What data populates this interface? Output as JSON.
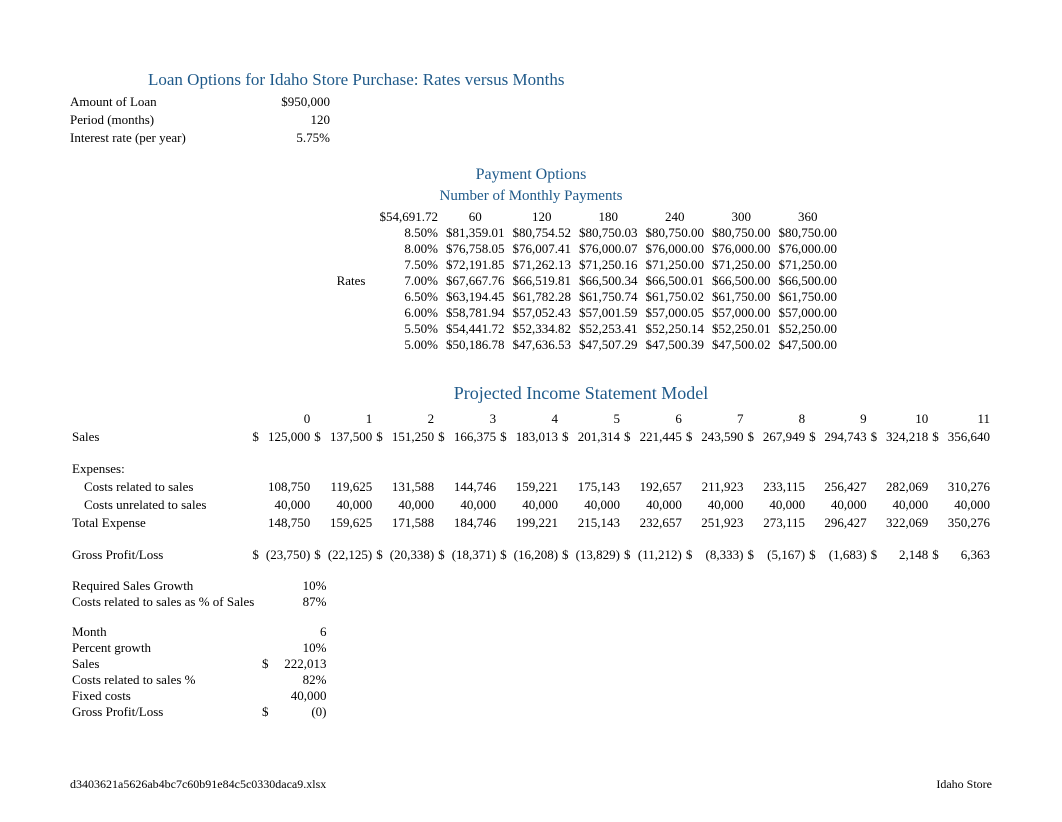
{
  "title": "Loan Options for Idaho Store Purchase: Rates versus Months",
  "loan_info": {
    "amount_label": "Amount of Loan",
    "amount_value": "$950,000",
    "period_label": "Period (months)",
    "period_value": "120",
    "rate_label": "Interest rate (per year)",
    "rate_value": "5.75%"
  },
  "payment_options_title": "Payment Options",
  "payment_subtitle": "Number of Monthly Payments",
  "rates_label": "Rates",
  "loan_table": {
    "corner": "$54,691.72",
    "months": [
      "60",
      "120",
      "180",
      "240",
      "300",
      "360"
    ],
    "rows": [
      {
        "rate": "8.50%",
        "vals": [
          "$81,359.01",
          "$80,754.52",
          "$80,750.03",
          "$80,750.00",
          "$80,750.00",
          "$80,750.00"
        ]
      },
      {
        "rate": "8.00%",
        "vals": [
          "$76,758.05",
          "$76,007.41",
          "$76,000.07",
          "$76,000.00",
          "$76,000.00",
          "$76,000.00"
        ]
      },
      {
        "rate": "7.50%",
        "vals": [
          "$72,191.85",
          "$71,262.13",
          "$71,250.16",
          "$71,250.00",
          "$71,250.00",
          "$71,250.00"
        ]
      },
      {
        "rate": "7.00%",
        "vals": [
          "$67,667.76",
          "$66,519.81",
          "$66,500.34",
          "$66,500.01",
          "$66,500.00",
          "$66,500.00"
        ]
      },
      {
        "rate": "6.50%",
        "vals": [
          "$63,194.45",
          "$61,782.28",
          "$61,750.74",
          "$61,750.02",
          "$61,750.00",
          "$61,750.00"
        ]
      },
      {
        "rate": "6.00%",
        "vals": [
          "$58,781.94",
          "$57,052.43",
          "$57,001.59",
          "$57,000.05",
          "$57,000.00",
          "$57,000.00"
        ]
      },
      {
        "rate": "5.50%",
        "vals": [
          "$54,441.72",
          "$52,334.82",
          "$52,253.41",
          "$52,250.14",
          "$52,250.01",
          "$52,250.00"
        ]
      },
      {
        "rate": "5.00%",
        "vals": [
          "$50,186.78",
          "$47,636.53",
          "$47,507.29",
          "$47,500.39",
          "$47,500.02",
          "$47,500.00"
        ]
      }
    ]
  },
  "income_title": "Projected Income Statement Model",
  "income": {
    "periods": [
      "0",
      "1",
      "2",
      "3",
      "4",
      "5",
      "6",
      "7",
      "8",
      "9",
      "10",
      "11"
    ],
    "sales_label": "Sales",
    "sales": [
      "125,000",
      "137,500",
      "151,250",
      "166,375",
      "183,013",
      "201,314",
      "221,445",
      "243,590",
      "267,949",
      "294,743",
      "324,218",
      "356,640"
    ],
    "expenses_label": "Expenses:",
    "costs_related_label": "Costs related to sales",
    "costs_related": [
      "108,750",
      "119,625",
      "131,588",
      "144,746",
      "159,221",
      "175,143",
      "192,657",
      "211,923",
      "233,115",
      "256,427",
      "282,069",
      "310,276"
    ],
    "costs_unrelated_label": "Costs unrelated to sales",
    "costs_unrelated": [
      "40,000",
      "40,000",
      "40,000",
      "40,000",
      "40,000",
      "40,000",
      "40,000",
      "40,000",
      "40,000",
      "40,000",
      "40,000",
      "40,000"
    ],
    "total_expense_label": "Total Expense",
    "total_expense": [
      "148,750",
      "159,625",
      "171,588",
      "184,746",
      "199,221",
      "215,143",
      "232,657",
      "251,923",
      "273,115",
      "296,427",
      "322,069",
      "350,276"
    ],
    "gross_profit_label": "Gross Profit/Loss",
    "gross_profit": [
      "(23,750)",
      "(22,125)",
      "(20,338)",
      "(18,371)",
      "(16,208)",
      "(13,829)",
      "(11,212)",
      "(8,333)",
      "(5,167)",
      "(1,683)",
      "2,148",
      "6,363"
    ]
  },
  "summary": {
    "required_growth_label": "Required Sales Growth",
    "required_growth": "10%",
    "costs_pct_label": "Costs related to sales as % of Sales",
    "costs_pct": "87%",
    "month_label": "Month",
    "month": "6",
    "percent_growth_label": "Percent growth",
    "percent_growth": "10%",
    "sales_label": "Sales",
    "sales": "222,013",
    "costs_related_pct_label": "Costs related to sales %",
    "costs_related_pct": "82%",
    "fixed_costs_label": "Fixed costs",
    "fixed_costs": "40,000",
    "gross_profit_label": "Gross Profit/Loss",
    "gross_profit": "(0)"
  },
  "footer": {
    "left": "d3403621a5626ab4bc7c60b91e84c5c0330daca9.xlsx",
    "right": "Idaho Store"
  },
  "colors": {
    "heading": "#1f5a8a",
    "text": "#000000",
    "background": "#ffffff"
  }
}
